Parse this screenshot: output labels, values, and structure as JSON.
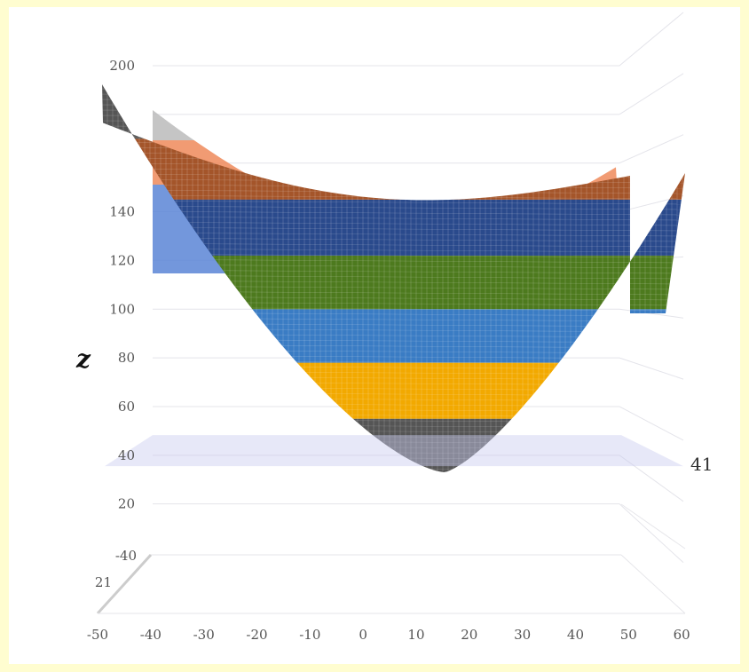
{
  "chart_data": {
    "type": "surface",
    "title": "",
    "zlabel": "z",
    "z_ticks": [
      "200",
      "140",
      "120",
      "100",
      "80",
      "60",
      "40",
      "20"
    ],
    "x_ticks": [
      "-50",
      "-40",
      "-30",
      "-20",
      "-10",
      "0",
      "10",
      "20",
      "30",
      "40",
      "50",
      "60"
    ],
    "y_ticks": [
      "-40",
      "21"
    ],
    "zlim": [
      20,
      200
    ],
    "xlim": [
      -50,
      60
    ],
    "plane": {
      "z": 41,
      "label": "41"
    },
    "surface": {
      "shape": "paraboloid",
      "z_min": 33,
      "vertex_x": 17,
      "bands": [
        {
          "z_from": 33,
          "z_to": 55,
          "color": "#555555"
        },
        {
          "z_from": 55,
          "z_to": 78,
          "color": "#f2a900"
        },
        {
          "z_from": 78,
          "z_to": 100,
          "color": "#3a7cc4"
        },
        {
          "z_from": 100,
          "z_to": 122,
          "color": "#4d7a1e"
        },
        {
          "z_from": 122,
          "z_to": 145,
          "color": "#2a4a8c"
        },
        {
          "z_from": 145,
          "z_to": 170,
          "color": "#a4552a"
        },
        {
          "z_from": 170,
          "z_to": 200,
          "color": "#555555"
        }
      ],
      "back_band_colors": [
        "#f2a900",
        "#5b85d6",
        "#ee8a5a",
        "#bbbbbb"
      ]
    },
    "grid": true
  }
}
